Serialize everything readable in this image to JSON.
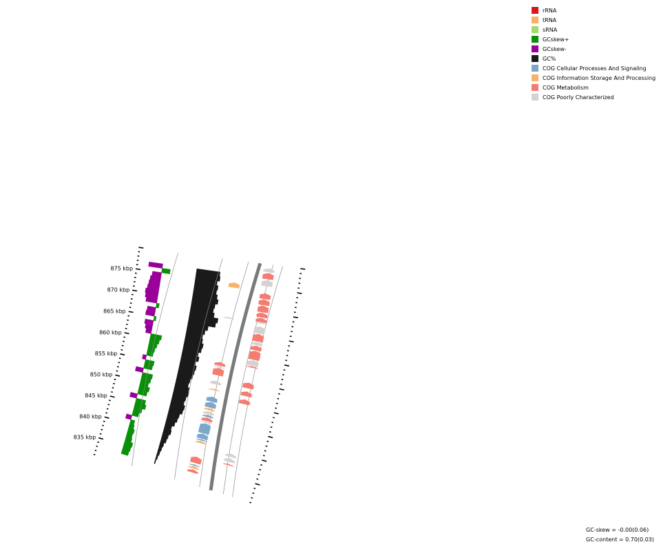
{
  "legend": [
    {
      "label": "rRNA",
      "color": "#d7191c"
    },
    {
      "label": "tRNA",
      "color": "#fdae61"
    },
    {
      "label": "sRNA",
      "color": "#a6d96a"
    },
    {
      "label": "GCskew+",
      "color": "#0a8f0a"
    },
    {
      "label": "GCskew-",
      "color": "#990099"
    },
    {
      "label": "GC%",
      "color": "#1a1a1a"
    },
    {
      "label": "COG Cellular Processes And Signaling",
      "color": "#7ba7cc"
    },
    {
      "label": "COG Information Storage And Processing",
      "color": "#f8b36b"
    },
    {
      "label": "COG Metabolism",
      "color": "#f47c70"
    },
    {
      "label": "COG Poorly Characterized",
      "color": "#d3d3d3"
    }
  ],
  "ticks": [
    {
      "kbp": 835,
      "label": "835 kbp"
    },
    {
      "kbp": 840,
      "label": "840 kbp"
    },
    {
      "kbp": 845,
      "label": "845 kbp"
    },
    {
      "kbp": 850,
      "label": "850 kbp"
    },
    {
      "kbp": 855,
      "label": "855 kbp"
    },
    {
      "kbp": 860,
      "label": "860 kbp"
    },
    {
      "kbp": 865,
      "label": "865 kbp"
    },
    {
      "kbp": 870,
      "label": "870 kbp"
    },
    {
      "kbp": 875,
      "label": "875 kbp"
    }
  ],
  "stats": {
    "gc_skew": "GC-skew = -0.00(0.06)",
    "gc_content": "GC-content = 0.70(0.03)"
  },
  "gc_content_trace_kbp": [
    [
      833,
      0.05
    ],
    [
      834,
      0.1
    ],
    [
      835,
      0.15
    ],
    [
      836,
      0.2
    ],
    [
      837,
      0.25
    ],
    [
      838,
      0.35
    ],
    [
      839,
      0.4
    ],
    [
      840,
      0.5
    ],
    [
      841,
      0.45
    ],
    [
      842,
      0.6
    ],
    [
      843,
      0.7
    ],
    [
      844,
      0.75
    ],
    [
      845,
      0.9
    ],
    [
      846,
      0.95
    ],
    [
      847,
      0.85
    ],
    [
      848,
      0.9
    ],
    [
      849,
      1.0
    ],
    [
      850,
      0.95
    ],
    [
      851,
      0.85
    ],
    [
      852,
      0.9
    ],
    [
      853,
      1.0
    ],
    [
      854,
      1.05
    ],
    [
      855,
      1.1
    ],
    [
      856,
      1.0
    ],
    [
      857,
      1.15
    ],
    [
      858,
      1.05
    ],
    [
      859,
      1.2
    ],
    [
      860,
      1.25
    ],
    [
      861,
      1.15
    ],
    [
      862,
      1.1
    ],
    [
      863,
      1.2
    ],
    [
      864,
      1.35
    ],
    [
      865,
      1.8
    ],
    [
      866,
      1.9
    ],
    [
      867,
      1.6
    ],
    [
      868,
      1.5
    ],
    [
      869,
      1.55
    ],
    [
      870,
      1.7
    ],
    [
      871,
      1.6
    ],
    [
      872,
      1.5
    ],
    [
      873,
      1.55
    ],
    [
      874,
      1.45
    ],
    [
      875,
      1.6
    ],
    [
      876,
      1.55
    ],
    [
      877,
      1.4
    ]
  ],
  "gc_skew_trace_kbp": [
    [
      833,
      1.0
    ],
    [
      834,
      1.1
    ],
    [
      835,
      1.2
    ],
    [
      836,
      0.9
    ],
    [
      837,
      0.8
    ],
    [
      838,
      0.9
    ],
    [
      839,
      0.7
    ],
    [
      840,
      0.6
    ],
    [
      841,
      -0.8
    ],
    [
      842,
      0.9
    ],
    [
      843,
      1.2
    ],
    [
      844,
      1.6
    ],
    [
      845,
      1.4
    ],
    [
      846,
      -1.0
    ],
    [
      847,
      1.3
    ],
    [
      848,
      1.5
    ],
    [
      849,
      1.2
    ],
    [
      850,
      1.4
    ],
    [
      851,
      1.5
    ],
    [
      852,
      -1.1
    ],
    [
      853,
      1.2
    ],
    [
      854,
      1.3
    ],
    [
      855,
      -0.5
    ],
    [
      856,
      0.9
    ],
    [
      857,
      1.0
    ],
    [
      858,
      1.2
    ],
    [
      859,
      1.4
    ],
    [
      860,
      1.6
    ],
    [
      861,
      -0.8
    ],
    [
      862,
      -1.0
    ],
    [
      863,
      -1.2
    ],
    [
      864,
      0.3
    ],
    [
      865,
      -1.3
    ],
    [
      866,
      -1.2
    ],
    [
      867,
      0.4
    ],
    [
      868,
      -1.6
    ],
    [
      869,
      -1.8
    ],
    [
      870,
      -1.9
    ],
    [
      871,
      -1.7
    ],
    [
      872,
      -1.6
    ],
    [
      873,
      -1.5
    ],
    [
      874,
      -1.3
    ],
    [
      875,
      1.2
    ],
    [
      876,
      -2.0
    ],
    [
      877,
      -2.2
    ]
  ],
  "features": [
    {
      "start": 833.5,
      "end": 834.2,
      "strand": "plus",
      "cog": "COG Metabolism"
    },
    {
      "start": 834.4,
      "end": 834.9,
      "strand": "plus",
      "cog": "COG Information Storage And Processing"
    },
    {
      "start": 835.0,
      "end": 835.3,
      "strand": "plus",
      "cog": "COG Cellular Processes And Signaling"
    },
    {
      "start": 835.6,
      "end": 837.0,
      "strand": "plus",
      "cog": "COG Metabolism"
    },
    {
      "start": 837.1,
      "end": 837.4,
      "strand": "minus",
      "cog": "COG Metabolism"
    },
    {
      "start": 837.8,
      "end": 838.6,
      "strand": "minus",
      "cog": "COG Poorly Characterized"
    },
    {
      "start": 838.9,
      "end": 839.6,
      "strand": "minus",
      "cog": "COG Poorly Characterized"
    },
    {
      "start": 840.0,
      "end": 840.5,
      "strand": "plus",
      "cog": "COG Information Storage And Processing"
    },
    {
      "start": 840.6,
      "end": 840.9,
      "strand": "plus",
      "cog": "COG Cellular Processes And Signaling"
    },
    {
      "start": 841.0,
      "end": 842.1,
      "strand": "plus",
      "cog": "COG Cellular Processes And Signaling"
    },
    {
      "start": 842.2,
      "end": 844.4,
      "strand": "plus",
      "cog": "COG Cellular Processes And Signaling"
    },
    {
      "start": 844.5,
      "end": 844.8,
      "strand": "plus",
      "cog": "COG Poorly Characterized"
    },
    {
      "start": 844.9,
      "end": 845.7,
      "strand": "plus",
      "cog": "COG Metabolism"
    },
    {
      "start": 845.8,
      "end": 846.3,
      "strand": "plus",
      "cog": "COG Cellular Processes And Signaling"
    },
    {
      "start": 846.4,
      "end": 847.1,
      "strand": "plus",
      "cog": "COG Poorly Characterized"
    },
    {
      "start": 847.3,
      "end": 847.8,
      "strand": "plus",
      "cog": "COG Information Storage And Processing"
    },
    {
      "start": 847.9,
      "end": 849.1,
      "strand": "plus",
      "cog": "COG Cellular Processes And Signaling"
    },
    {
      "start": 849.2,
      "end": 850.3,
      "strand": "plus",
      "cog": "COG Cellular Processes And Signaling"
    },
    {
      "start": 850.3,
      "end": 851.3,
      "strand": "minus",
      "cog": "COG Metabolism"
    },
    {
      "start": 851.7,
      "end": 852.0,
      "strand": "plus",
      "cog": "COG Information Storage And Processing"
    },
    {
      "start": 852.0,
      "end": 853.0,
      "strand": "minus",
      "cog": "COG Metabolism"
    },
    {
      "start": 853.0,
      "end": 853.8,
      "strand": "plus",
      "cog": "COG Poorly Characterized"
    },
    {
      "start": 853.7,
      "end": 854.9,
      "strand": "minus",
      "cog": "COG Metabolism"
    },
    {
      "start": 855.0,
      "end": 856.6,
      "strand": "plus",
      "cog": "COG Metabolism"
    },
    {
      "start": 856.7,
      "end": 857.0,
      "strand": "plus",
      "cog": "COG Poorly Characterized"
    },
    {
      "start": 857.1,
      "end": 857.9,
      "strand": "plus",
      "cog": "COG Metabolism"
    },
    {
      "start": 858.1,
      "end": 858.4,
      "strand": "minus",
      "cog": "COG Metabolism"
    },
    {
      "start": 858.5,
      "end": 859.7,
      "strand": "minus",
      "cog": "COG Poorly Characterized"
    },
    {
      "start": 859.8,
      "end": 861.7,
      "strand": "minus",
      "cog": "COG Metabolism"
    },
    {
      "start": 861.8,
      "end": 862.8,
      "strand": "minus",
      "cog": "COG Metabolism"
    },
    {
      "start": 862.9,
      "end": 863.6,
      "strand": "minus",
      "cog": "COG Poorly Characterized"
    },
    {
      "start": 863.7,
      "end": 865.3,
      "strand": "minus",
      "cog": "COG Metabolism"
    },
    {
      "start": 865.4,
      "end": 866.9,
      "strand": "minus",
      "cog": "COG Poorly Characterized"
    },
    {
      "start": 867.4,
      "end": 867.7,
      "strand": "plus",
      "cog": "COG Poorly Characterized"
    },
    {
      "start": 867.5,
      "end": 867.8,
      "strand": "minus",
      "cog": "COG Poorly Characterized"
    },
    {
      "start": 867.8,
      "end": 868.7,
      "strand": "minus",
      "cog": "COG Metabolism"
    },
    {
      "start": 868.8,
      "end": 869.8,
      "strand": "minus",
      "cog": "COG Metabolism"
    },
    {
      "start": 869.9,
      "end": 871.3,
      "strand": "minus",
      "cog": "COG Metabolism"
    },
    {
      "start": 871.4,
      "end": 872.6,
      "strand": "minus",
      "cog": "COG Metabolism"
    },
    {
      "start": 872.7,
      "end": 873.9,
      "strand": "minus",
      "cog": "COG Metabolism"
    },
    {
      "start": 874.1,
      "end": 875.2,
      "strand": "plus",
      "cog": "COG Information Storage And Processing"
    },
    {
      "start": 875.4,
      "end": 876.7,
      "strand": "minus",
      "cog": "COG Poorly Characterized"
    },
    {
      "start": 876.9,
      "end": 878.2,
      "strand": "minus",
      "cog": "COG Metabolism"
    },
    {
      "start": 878.4,
      "end": 879.2,
      "strand": "minus",
      "cog": "COG Poorly Characterized"
    }
  ]
}
